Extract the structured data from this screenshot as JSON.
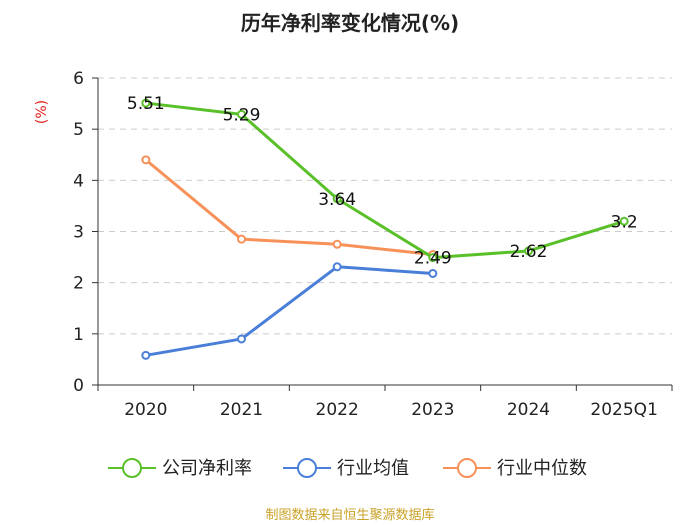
{
  "chart_data": {
    "type": "line",
    "title": "历年净利率变化情况(%)",
    "xlabel": "",
    "ylabel": "(%)",
    "categories": [
      "2020",
      "2021",
      "2022",
      "2023",
      "2024",
      "2025Q1"
    ],
    "ylim": [
      0,
      6
    ],
    "yticks": [
      "0",
      "1",
      "2",
      "3",
      "4",
      "5",
      "6"
    ],
    "grid": true,
    "legend_position": "bottom",
    "series": [
      {
        "name": "公司净利率",
        "color": "#5ac02a",
        "values": [
          5.51,
          5.29,
          3.64,
          2.49,
          2.62,
          3.2
        ],
        "labels": [
          "5.51",
          "5.29",
          "3.64",
          "2.49",
          "2.62",
          "3.2"
        ]
      },
      {
        "name": "行业均值",
        "color": "#4a7fd9",
        "values": [
          0.58,
          0.9,
          2.31,
          2.18,
          null,
          null
        ]
      },
      {
        "name": "行业中位数",
        "color": "#f7915a",
        "values": [
          4.4,
          2.85,
          2.75,
          2.55,
          null,
          null
        ]
      }
    ],
    "source": "制图数据来自恒生聚源数据库"
  }
}
